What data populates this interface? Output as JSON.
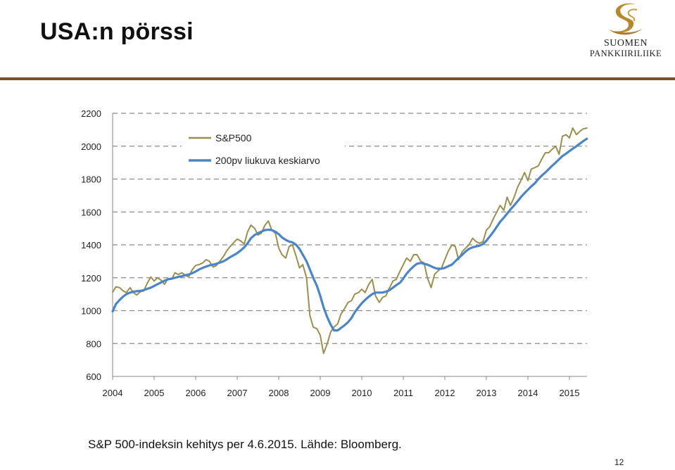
{
  "slide": {
    "title": "USA:n pörssi",
    "caption": "S&P 500-indeksin kehitys per 4.6.2015. Lähde: Bloomberg.",
    "page_number": "12"
  },
  "brand": {
    "line1": "SUOMEN",
    "line2": "PANKKIIRILIIKE",
    "logo_icon": "gold-s-swirl-icon",
    "gold_color": "#b8892c",
    "rule_color": "#7a5230"
  },
  "chart_data": {
    "type": "line",
    "title": "",
    "xlabel": "",
    "ylabel": "",
    "xlim": [
      2004,
      2015.42
    ],
    "ylim": [
      600,
      2200
    ],
    "yticks": [
      600,
      800,
      1000,
      1200,
      1400,
      1600,
      1800,
      2000,
      2200
    ],
    "xticks": [
      "2004",
      "2005",
      "2006",
      "2007",
      "2008",
      "2009",
      "2010",
      "2011",
      "2012",
      "2013",
      "2014",
      "2015"
    ],
    "grid": "horizontal dashed",
    "legend_position": "top-left",
    "series": [
      {
        "name": "S&P500",
        "color": "#9b8f4e",
        "x": [
          2004.0,
          2004.08,
          2004.17,
          2004.25,
          2004.33,
          2004.42,
          2004.5,
          2004.58,
          2004.67,
          2004.75,
          2004.83,
          2004.92,
          2005.0,
          2005.08,
          2005.17,
          2005.25,
          2005.33,
          2005.42,
          2005.5,
          2005.58,
          2005.67,
          2005.75,
          2005.83,
          2005.92,
          2006.0,
          2006.08,
          2006.17,
          2006.25,
          2006.33,
          2006.42,
          2006.5,
          2006.58,
          2006.67,
          2006.75,
          2006.83,
          2006.92,
          2007.0,
          2007.08,
          2007.17,
          2007.25,
          2007.33,
          2007.42,
          2007.5,
          2007.58,
          2007.67,
          2007.75,
          2007.83,
          2007.92,
          2008.0,
          2008.08,
          2008.17,
          2008.25,
          2008.33,
          2008.42,
          2008.5,
          2008.58,
          2008.67,
          2008.75,
          2008.83,
          2008.92,
          2009.0,
          2009.08,
          2009.17,
          2009.25,
          2009.33,
          2009.42,
          2009.5,
          2009.58,
          2009.67,
          2009.75,
          2009.83,
          2009.92,
          2010.0,
          2010.08,
          2010.17,
          2010.25,
          2010.33,
          2010.42,
          2010.5,
          2010.58,
          2010.67,
          2010.75,
          2010.83,
          2010.92,
          2011.0,
          2011.08,
          2011.17,
          2011.25,
          2011.33,
          2011.42,
          2011.5,
          2011.58,
          2011.67,
          2011.75,
          2011.83,
          2011.92,
          2012.0,
          2012.08,
          2012.17,
          2012.25,
          2012.33,
          2012.42,
          2012.5,
          2012.58,
          2012.67,
          2012.75,
          2012.83,
          2012.92,
          2013.0,
          2013.08,
          2013.17,
          2013.25,
          2013.33,
          2013.42,
          2013.5,
          2013.58,
          2013.67,
          2013.75,
          2013.83,
          2013.92,
          2014.0,
          2014.08,
          2014.17,
          2014.25,
          2014.33,
          2014.42,
          2014.5,
          2014.58,
          2014.67,
          2014.75,
          2014.83,
          2014.92,
          2015.0,
          2015.08,
          2015.17,
          2015.25,
          2015.33,
          2015.42
        ],
        "y": [
          1112,
          1145,
          1140,
          1120,
          1110,
          1140,
          1110,
          1095,
          1115,
          1120,
          1165,
          1205,
          1180,
          1200,
          1185,
          1160,
          1195,
          1190,
          1230,
          1220,
          1230,
          1215,
          1205,
          1250,
          1275,
          1280,
          1290,
          1310,
          1300,
          1265,
          1275,
          1300,
          1330,
          1365,
          1390,
          1415,
          1435,
          1425,
          1405,
          1480,
          1520,
          1500,
          1460,
          1470,
          1520,
          1545,
          1490,
          1470,
          1380,
          1340,
          1320,
          1390,
          1400,
          1330,
          1260,
          1280,
          1200,
          970,
          900,
          890,
          850,
          740,
          800,
          870,
          900,
          920,
          980,
          1010,
          1050,
          1060,
          1100,
          1110,
          1130,
          1110,
          1160,
          1190,
          1090,
          1050,
          1080,
          1090,
          1140,
          1180,
          1190,
          1240,
          1280,
          1320,
          1300,
          1340,
          1340,
          1300,
          1290,
          1200,
          1140,
          1220,
          1240,
          1260,
          1310,
          1360,
          1400,
          1390,
          1310,
          1360,
          1380,
          1400,
          1440,
          1420,
          1410,
          1420,
          1490,
          1510,
          1560,
          1600,
          1640,
          1610,
          1690,
          1640,
          1690,
          1750,
          1790,
          1840,
          1790,
          1860,
          1870,
          1880,
          1920,
          1960,
          1960,
          1980,
          2000,
          1950,
          2060,
          2070,
          2050,
          2110,
          2070,
          2090,
          2105,
          2110
        ]
      },
      {
        "name": "200pv liukuva keskiarvo",
        "color": "#4a85c8",
        "x": [
          2004.0,
          2004.08,
          2004.17,
          2004.25,
          2004.33,
          2004.42,
          2004.5,
          2004.58,
          2004.67,
          2004.75,
          2004.83,
          2004.92,
          2005.0,
          2005.08,
          2005.17,
          2005.25,
          2005.33,
          2005.42,
          2005.5,
          2005.58,
          2005.67,
          2005.75,
          2005.83,
          2005.92,
          2006.0,
          2006.08,
          2006.17,
          2006.25,
          2006.33,
          2006.42,
          2006.5,
          2006.58,
          2006.67,
          2006.75,
          2006.83,
          2006.92,
          2007.0,
          2007.08,
          2007.17,
          2007.25,
          2007.33,
          2007.42,
          2007.5,
          2007.58,
          2007.67,
          2007.75,
          2007.83,
          2007.92,
          2008.0,
          2008.08,
          2008.17,
          2008.25,
          2008.33,
          2008.42,
          2008.5,
          2008.58,
          2008.67,
          2008.75,
          2008.83,
          2008.92,
          2009.0,
          2009.08,
          2009.17,
          2009.25,
          2009.33,
          2009.42,
          2009.5,
          2009.58,
          2009.67,
          2009.75,
          2009.83,
          2009.92,
          2010.0,
          2010.08,
          2010.17,
          2010.25,
          2010.33,
          2010.42,
          2010.5,
          2010.58,
          2010.67,
          2010.75,
          2010.83,
          2010.92,
          2011.0,
          2011.08,
          2011.17,
          2011.25,
          2011.33,
          2011.42,
          2011.5,
          2011.58,
          2011.67,
          2011.75,
          2011.83,
          2011.92,
          2012.0,
          2012.08,
          2012.17,
          2012.25,
          2012.33,
          2012.42,
          2012.5,
          2012.58,
          2012.67,
          2012.75,
          2012.83,
          2012.92,
          2013.0,
          2013.08,
          2013.17,
          2013.25,
          2013.33,
          2013.42,
          2013.5,
          2013.58,
          2013.67,
          2013.75,
          2013.83,
          2013.92,
          2014.0,
          2014.08,
          2014.17,
          2014.25,
          2014.33,
          2014.42,
          2014.5,
          2014.58,
          2014.67,
          2014.75,
          2014.83,
          2014.92,
          2015.0,
          2015.08,
          2015.17,
          2015.25,
          2015.33,
          2015.42
        ],
        "y": [
          995,
          1040,
          1065,
          1085,
          1100,
          1110,
          1115,
          1118,
          1120,
          1125,
          1132,
          1140,
          1150,
          1160,
          1172,
          1182,
          1190,
          1195,
          1200,
          1205,
          1210,
          1215,
          1220,
          1228,
          1238,
          1250,
          1260,
          1268,
          1275,
          1280,
          1285,
          1292,
          1300,
          1312,
          1325,
          1338,
          1350,
          1365,
          1385,
          1410,
          1440,
          1460,
          1470,
          1480,
          1490,
          1492,
          1490,
          1480,
          1465,
          1445,
          1430,
          1420,
          1415,
          1400,
          1375,
          1340,
          1300,
          1250,
          1200,
          1150,
          1090,
          1020,
          960,
          915,
          880,
          880,
          895,
          910,
          930,
          955,
          990,
          1020,
          1045,
          1065,
          1085,
          1100,
          1110,
          1110,
          1110,
          1115,
          1125,
          1140,
          1155,
          1170,
          1195,
          1225,
          1250,
          1270,
          1285,
          1290,
          1285,
          1280,
          1270,
          1260,
          1255,
          1255,
          1260,
          1270,
          1280,
          1300,
          1320,
          1340,
          1360,
          1375,
          1385,
          1390,
          1395,
          1405,
          1425,
          1450,
          1480,
          1510,
          1540,
          1565,
          1590,
          1615,
          1640,
          1665,
          1690,
          1715,
          1735,
          1755,
          1775,
          1800,
          1820,
          1840,
          1860,
          1880,
          1900,
          1920,
          1940,
          1955,
          1970,
          1985,
          2000,
          2015,
          2030,
          2045
        ]
      }
    ]
  }
}
